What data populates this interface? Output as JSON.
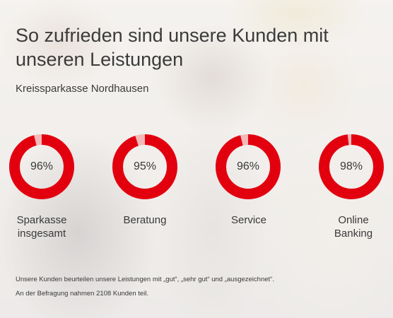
{
  "header": {
    "title_line1": "So zufrieden sind unsere Kunden mit",
    "title_line2": "unseren Leistungen",
    "subtitle": "Kreissparkasse Nordhausen"
  },
  "colors": {
    "accent": "#e2000f",
    "track": "#f3b9b9"
  },
  "metrics": [
    {
      "value_text": "96%",
      "fraction": 0.96,
      "label_line1": "Sparkasse",
      "label_line2": "insgesamt"
    },
    {
      "value_text": "95%",
      "fraction": 0.95,
      "label_line1": "Beratung",
      "label_line2": ""
    },
    {
      "value_text": "96%",
      "fraction": 0.96,
      "label_line1": "Service",
      "label_line2": ""
    },
    {
      "value_text": "98%",
      "fraction": 0.98,
      "label_line1": "Online",
      "label_line2": "Banking"
    }
  ],
  "footnotes": {
    "line1": "Unsere Kunden beurteilen unsere Leistungen mit „gut“, „sehr gut“ und „ausgezeichnet“.",
    "line2": "An der Befragung nahmen 2108 Kunden teil."
  }
}
